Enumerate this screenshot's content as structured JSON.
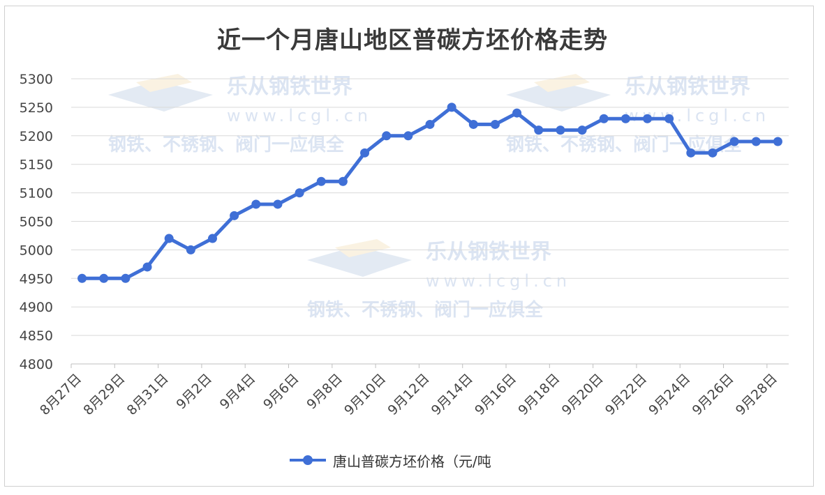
{
  "chart_data": {
    "type": "line",
    "title": "近一个月唐山地区普碳方坯价格走势",
    "categories": [
      "8月27日",
      "8月28日",
      "8月29日",
      "8月30日",
      "8月31日",
      "9月1日",
      "9月2日",
      "9月3日",
      "9月4日",
      "9月5日",
      "9月6日",
      "9月7日",
      "9月8日",
      "9月9日",
      "9月10日",
      "9月11日",
      "9月12日",
      "9月13日",
      "9月14日",
      "9月15日",
      "9月16日",
      "9月17日",
      "9月18日",
      "9月19日",
      "9月20日",
      "9月21日",
      "9月22日",
      "9月23日",
      "9月24日",
      "9月25日",
      "9月26日",
      "9月27日",
      "9月28日"
    ],
    "tick_labels": [
      "8月27日",
      "8月29日",
      "8月31日",
      "9月2日",
      "9月4日",
      "9月6日",
      "9月8日",
      "9月10日",
      "9月12日",
      "9月14日",
      "9月16日",
      "9月18日",
      "9月20日",
      "9月22日",
      "9月24日",
      "9月26日",
      "9月28日"
    ],
    "series": [
      {
        "name": "唐山普碳方坯价格（元/吨",
        "color": "#3f6fd6",
        "values": [
          4950,
          4950,
          4950,
          4970,
          5020,
          5000,
          5020,
          5060,
          5080,
          5080,
          5100,
          5120,
          5120,
          5170,
          5200,
          5200,
          5220,
          5250,
          5220,
          5220,
          5240,
          5210,
          5210,
          5210,
          5230,
          5230,
          5230,
          5230,
          5170,
          5170,
          5190,
          5190,
          5190
        ]
      }
    ],
    "ylim": [
      4800,
      5300
    ],
    "yticks": [
      4800,
      4850,
      4900,
      4950,
      5000,
      5050,
      5100,
      5150,
      5200,
      5250,
      5300
    ],
    "grid": true,
    "legend_position": "bottom",
    "xlabel": "",
    "ylabel": ""
  },
  "watermark": {
    "brand": "乐从钢铁世界",
    "url": "www.lcgl.cn",
    "slogan": "钢铁、不锈钢、阀门一应俱全"
  }
}
